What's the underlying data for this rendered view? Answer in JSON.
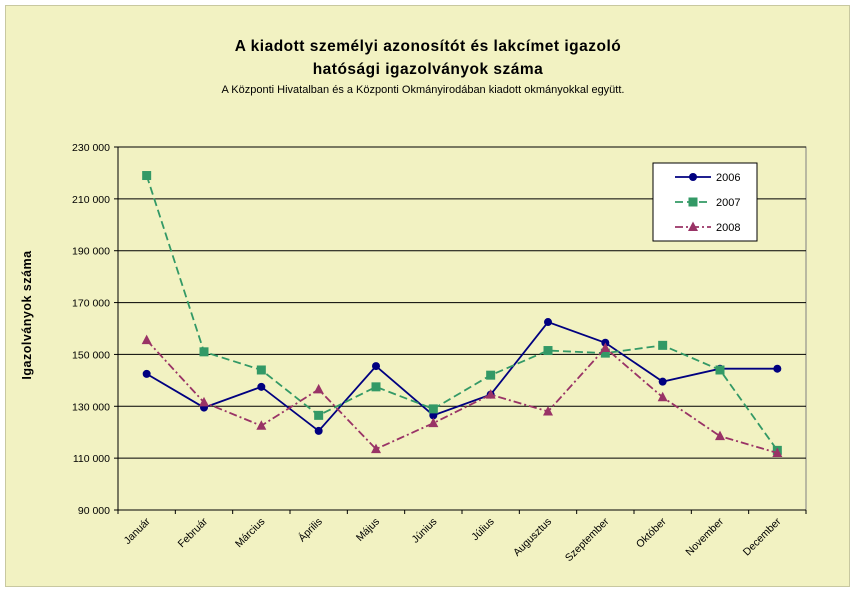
{
  "chart_data": {
    "type": "line",
    "title_line1": "A kiadott személyi azonosítót és lakcímet igazoló",
    "title_line2": "hatósági igazolványok száma",
    "subtitle": "A Központi Hivatalban és a Központi Okmányirodában kiadott okmányokkal együtt.",
    "xlabel": "",
    "ylabel": "Igazolványok száma",
    "ylim": [
      90000,
      230000
    ],
    "ytick_values": [
      90000,
      110000,
      130000,
      150000,
      170000,
      190000,
      210000,
      230000
    ],
    "ytick_labels": [
      "90 000",
      "110 000",
      "130 000",
      "150 000",
      "170 000",
      "190 000",
      "210 000",
      "230 000"
    ],
    "categories": [
      "Január",
      "Február",
      "Március",
      "Április",
      "Május",
      "Június",
      "Július",
      "Augusztus",
      "Szeptember",
      "Október",
      "November",
      "December"
    ],
    "grid": true,
    "legend_position": "top-right",
    "series": [
      {
        "name": "2006",
        "color": "#000080",
        "dash": "solid",
        "marker": "circle",
        "values": [
          142500,
          129500,
          137500,
          120500,
          145500,
          126500,
          134500,
          162500,
          154500,
          139500,
          144500,
          144500
        ]
      },
      {
        "name": "2007",
        "color": "#339966",
        "dash": "dashed",
        "marker": "square",
        "values": [
          219000,
          151000,
          144000,
          126500,
          137500,
          129000,
          142000,
          151500,
          150500,
          153500,
          144000,
          113000
        ]
      },
      {
        "name": "2008",
        "color": "#993366",
        "dash": "dashdot",
        "marker": "triangle",
        "values": [
          155500,
          131500,
          122500,
          136500,
          113500,
          123500,
          134500,
          128000,
          152500,
          133500,
          118500,
          112000
        ]
      }
    ]
  }
}
